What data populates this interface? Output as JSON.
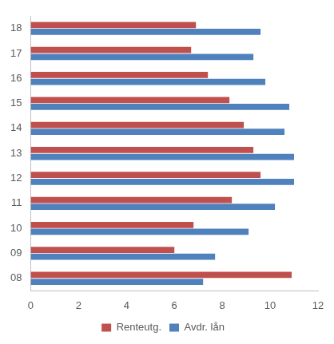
{
  "chart_data": {
    "type": "bar",
    "orientation": "horizontal",
    "categories": [
      "08",
      "09",
      "10",
      "11",
      "12",
      "13",
      "14",
      "15",
      "16",
      "17",
      "18"
    ],
    "series": [
      {
        "name": "Renteutg.",
        "color": "#c0504d",
        "values": [
          10.9,
          6.0,
          6.8,
          8.4,
          9.6,
          9.3,
          8.9,
          8.3,
          7.4,
          6.7,
          6.9
        ]
      },
      {
        "name": "Avdr. lån",
        "color": "#4f81bd",
        "values": [
          7.2,
          7.7,
          9.1,
          10.2,
          11.0,
          11.0,
          10.6,
          10.8,
          9.8,
          9.3,
          9.6
        ]
      }
    ],
    "xlim": [
      0,
      12
    ],
    "xticks": [
      0,
      2,
      4,
      6,
      8,
      10,
      12
    ],
    "grid": false,
    "legend": "bottom"
  }
}
